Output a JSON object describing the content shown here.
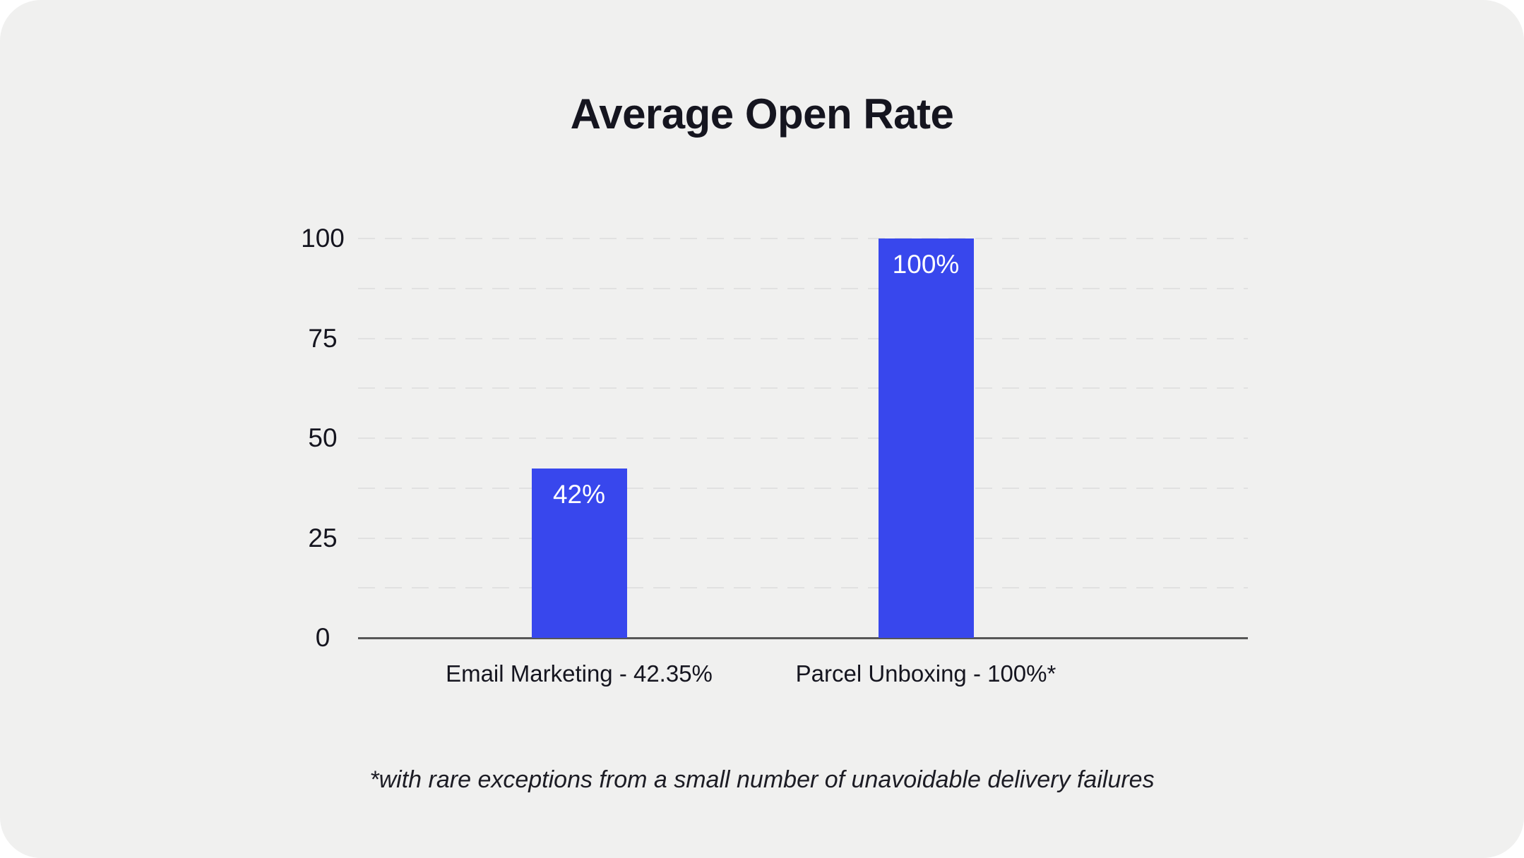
{
  "page": {
    "background": "#ffffff"
  },
  "card": {
    "background": "#f0f0ef"
  },
  "chart_data": {
    "type": "bar",
    "title": "Average Open Rate",
    "categories": [
      "Email Marketing - 42.35%",
      "Parcel Unboxing - 100%*"
    ],
    "values": [
      42.35,
      100
    ],
    "bar_labels": [
      "42%",
      "100%"
    ],
    "xlabel": "",
    "ylabel": "",
    "ylim": [
      0,
      100
    ],
    "yticks": [
      0,
      25,
      50,
      75,
      100
    ],
    "minor_grid_step": 12.5,
    "grid": "horizontal dashed gridlines every 12.5, solid baseline at 0",
    "legend": "none",
    "bar_color": "#3847ed",
    "bar_label_color": "#ffffff",
    "grid_color": "#e1e1e1",
    "axis_color": "#575757",
    "text_color": "#15151f"
  },
  "footnote": "*with rare exceptions from a small number of unavoidable delivery failures"
}
